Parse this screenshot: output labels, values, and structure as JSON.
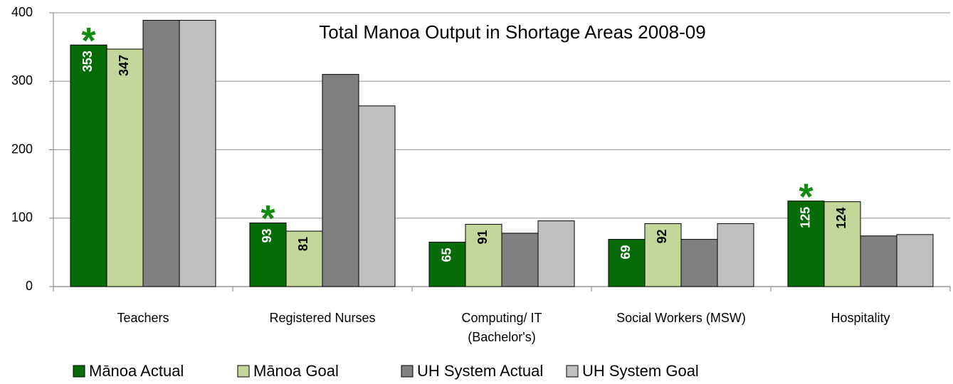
{
  "chart_data": {
    "type": "bar",
    "title": "Total Manoa Output in Shortage Areas 2008-09",
    "categories": [
      "Teachers",
      "Registered Nurses",
      "Computing/ IT\n(Bachelor's)",
      "Social Workers (MSW)",
      "Hospitality"
    ],
    "series": [
      {
        "name": "Mānoa Actual",
        "color": "#076b07",
        "values": [
          353,
          93,
          65,
          69,
          125
        ],
        "labeled": true,
        "label_color": "#ffffff",
        "markers": [
          "*",
          "*",
          null,
          null,
          "*"
        ]
      },
      {
        "name": "Mānoa Goal",
        "color": "#c4d79b",
        "values": [
          347,
          81,
          91,
          92,
          124
        ],
        "labeled": true,
        "label_color": "#000000"
      },
      {
        "name": "UH System Actual",
        "color": "#808080",
        "values": [
          389,
          310,
          78,
          69,
          74
        ],
        "labeled": false
      },
      {
        "name": "UH System Goal",
        "color": "#bfbfbf",
        "values": [
          389,
          264,
          96,
          92,
          76
        ],
        "labeled": false
      }
    ],
    "marker_color": "#118a11",
    "ylim": [
      0,
      400
    ],
    "yticks": [
      0,
      100,
      200,
      300,
      400
    ],
    "grid": true,
    "legend": "bottom"
  }
}
